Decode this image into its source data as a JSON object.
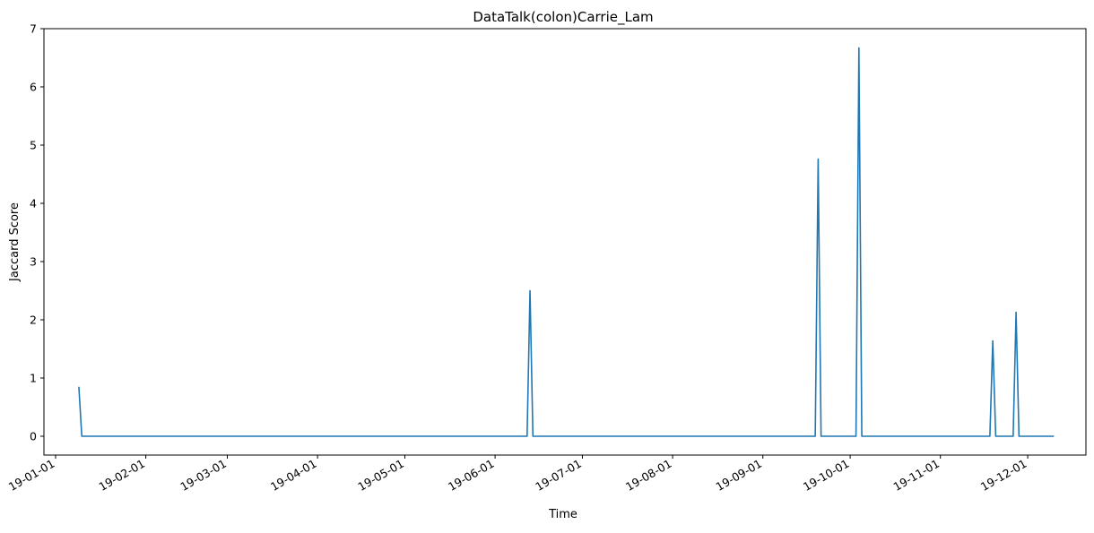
{
  "chart_data": {
    "type": "line",
    "title": "DataTalk(colon)Carrie_Lam",
    "xlabel": "Time",
    "ylabel": "Jaccard Score",
    "xlim": [
      "2018-12-28",
      "2019-12-21"
    ],
    "ylim": [
      0,
      7
    ],
    "grid": false,
    "legend": "none",
    "line_color": "#1f77b4",
    "x_ticks": [
      {
        "date": "2019-01-01",
        "label": "19-01-01"
      },
      {
        "date": "2019-02-01",
        "label": "19-02-01"
      },
      {
        "date": "2019-03-01",
        "label": "19-03-01"
      },
      {
        "date": "2019-04-01",
        "label": "19-04-01"
      },
      {
        "date": "2019-05-01",
        "label": "19-05-01"
      },
      {
        "date": "2019-06-01",
        "label": "19-06-01"
      },
      {
        "date": "2019-07-01",
        "label": "19-07-01"
      },
      {
        "date": "2019-08-01",
        "label": "19-08-01"
      },
      {
        "date": "2019-09-01",
        "label": "19-09-01"
      },
      {
        "date": "2019-10-01",
        "label": "19-10-01"
      },
      {
        "date": "2019-11-01",
        "label": "19-11-01"
      },
      {
        "date": "2019-12-01",
        "label": "19-12-01"
      }
    ],
    "y_ticks": [
      0,
      1,
      2,
      3,
      4,
      5,
      6,
      7
    ],
    "series": [
      {
        "x": [
          "2019-01-09",
          "2019-01-10",
          "2019-06-12",
          "2019-06-13",
          "2019-06-14",
          "2019-09-19",
          "2019-09-20",
          "2019-09-21",
          "2019-10-03",
          "2019-10-04",
          "2019-10-05",
          "2019-11-18",
          "2019-11-19",
          "2019-11-20",
          "2019-11-26",
          "2019-11-27",
          "2019-11-28",
          "2019-12-10"
        ],
        "y": [
          0.85,
          0,
          0,
          2.5,
          0,
          0,
          4.76,
          0,
          0,
          6.67,
          0,
          0,
          1.64,
          0,
          0,
          2.13,
          0,
          0
        ]
      }
    ]
  }
}
